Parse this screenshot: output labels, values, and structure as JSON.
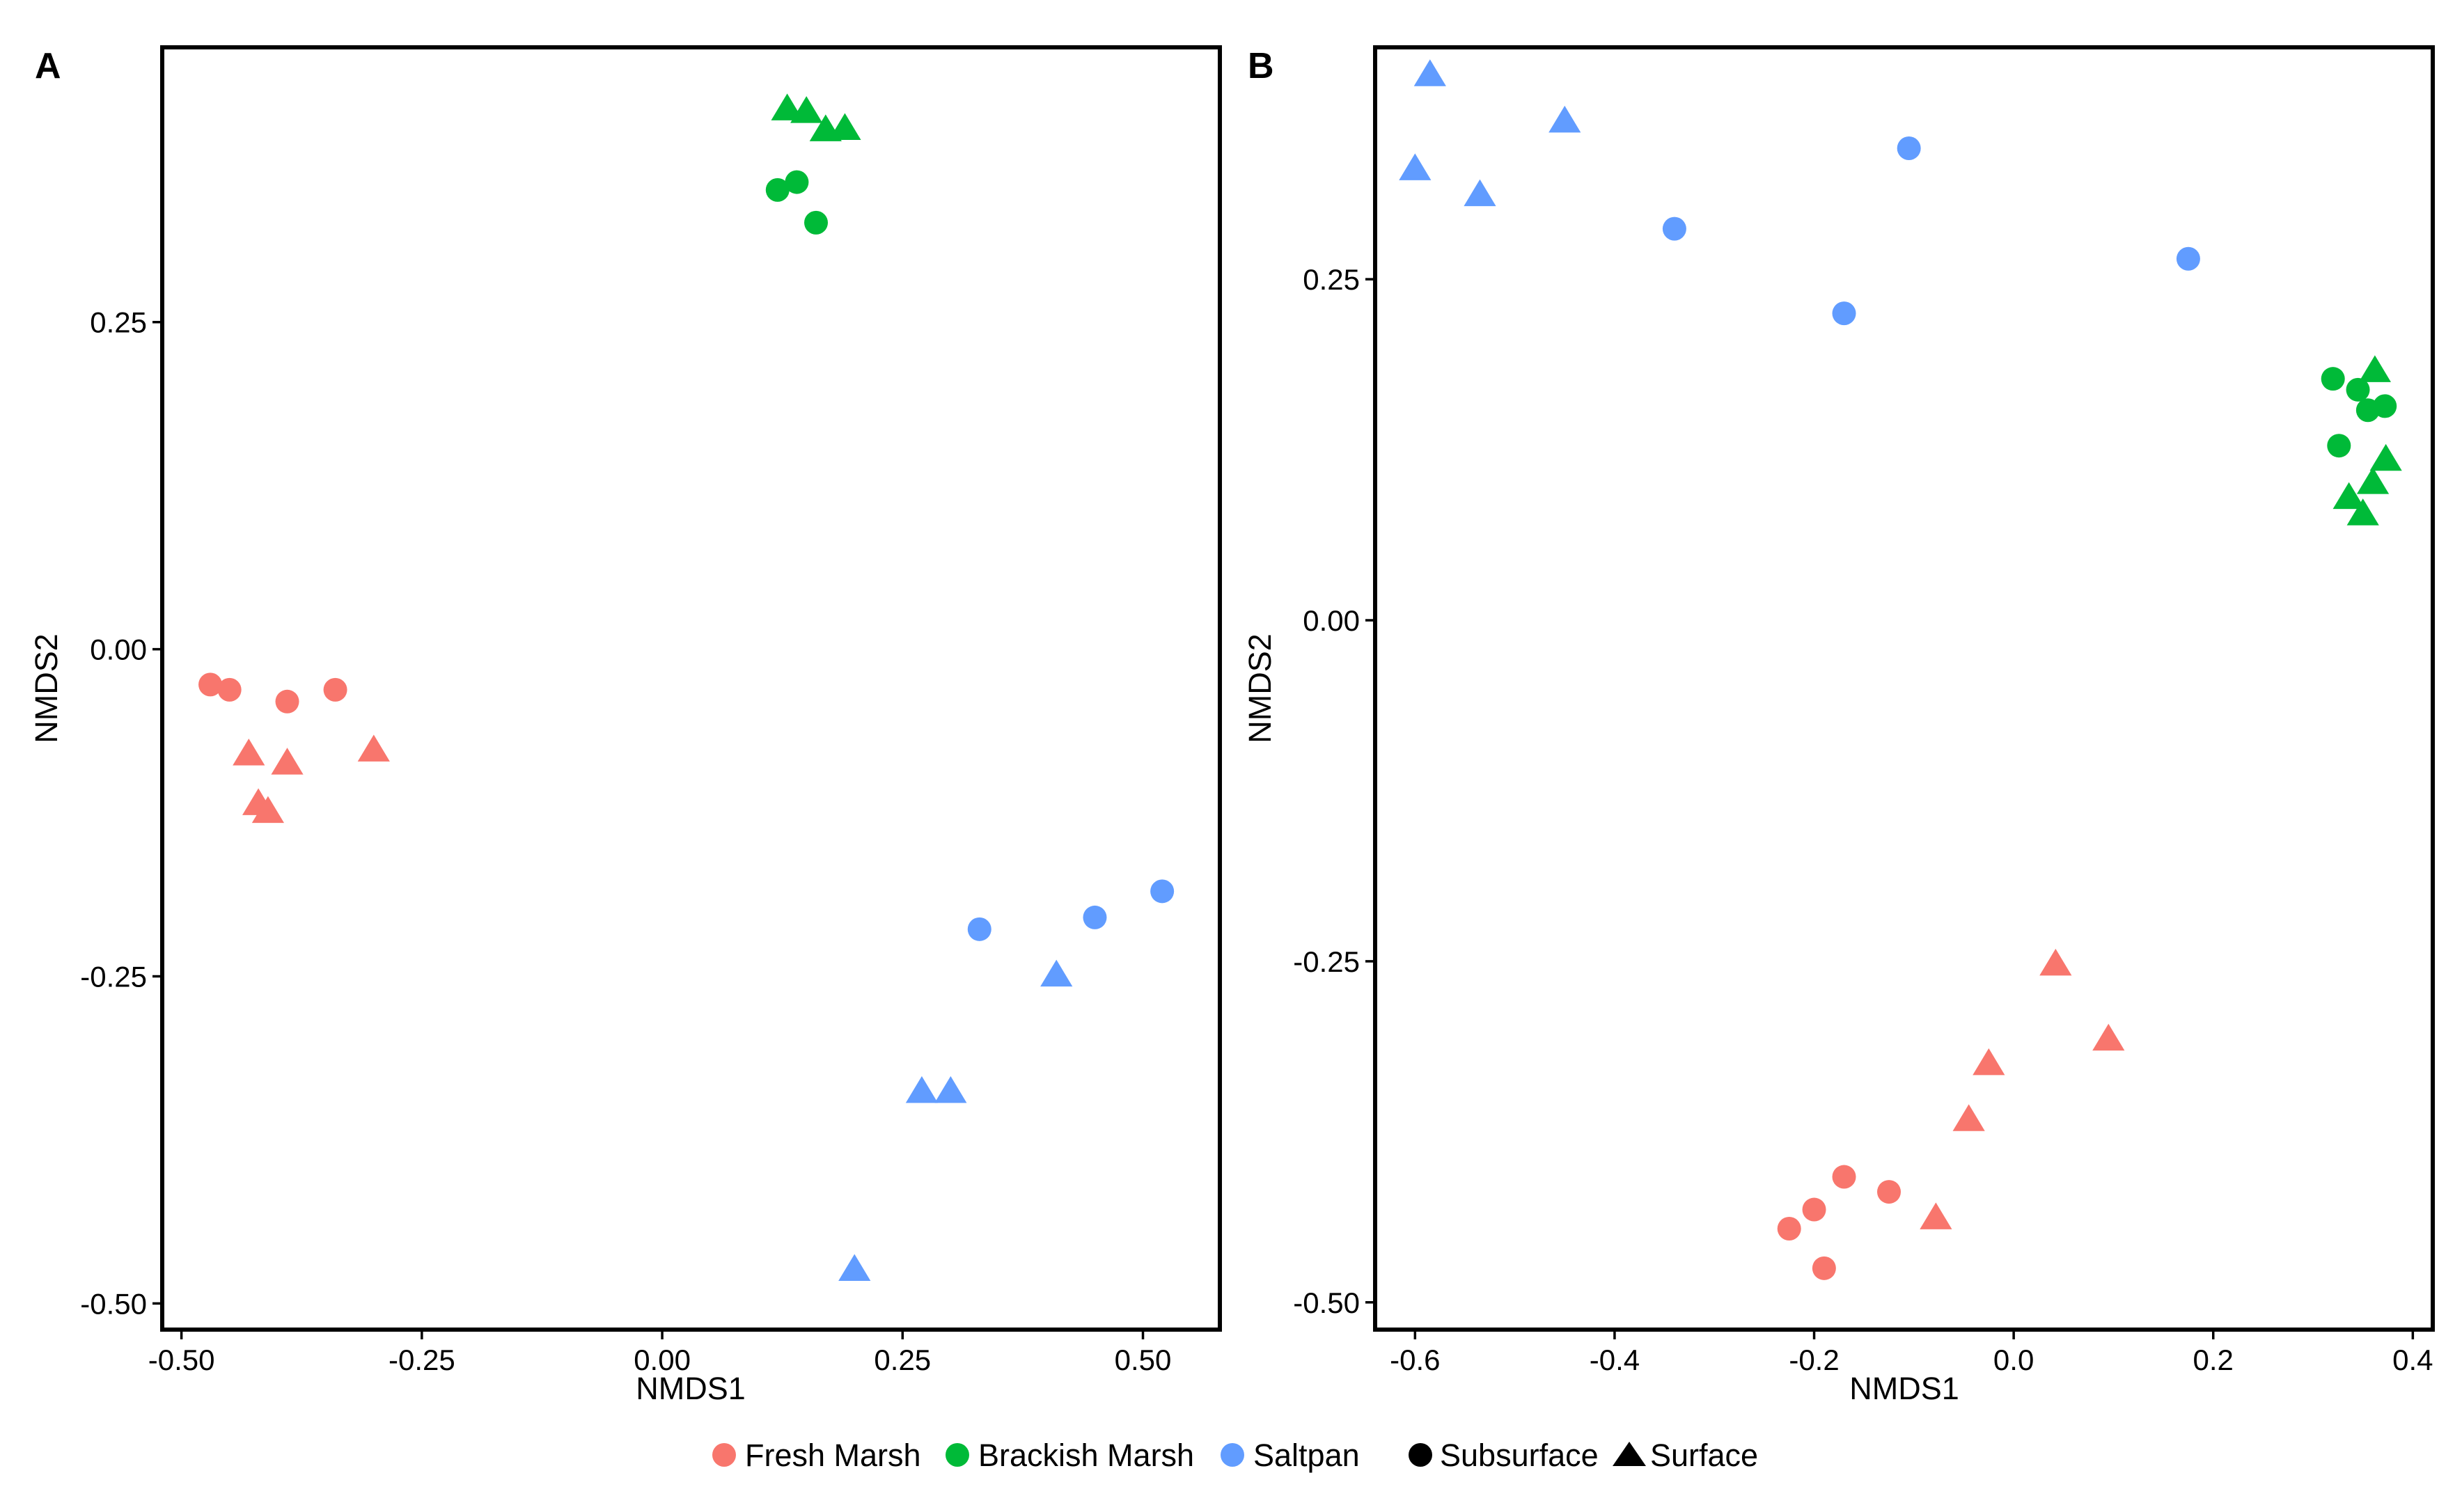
{
  "chart_data": [
    {
      "panel": "A",
      "type": "scatter",
      "xlabel": "NMDS1",
      "ylabel": "NMDS2",
      "xlim": [
        -0.52,
        0.58
      ],
      "ylim": [
        -0.52,
        0.46
      ],
      "xticks": [
        -0.5,
        -0.25,
        0.0,
        0.25,
        0.5
      ],
      "xtick_labels": [
        "-0.50",
        "-0.25",
        "0.00",
        "0.25",
        "0.50"
      ],
      "yticks": [
        -0.5,
        -0.25,
        0.0,
        0.25
      ],
      "ytick_labels": [
        "-0.50",
        "-0.25",
        "0.00",
        "0.25"
      ],
      "grid": false,
      "points": [
        {
          "x": -0.47,
          "y": -0.027,
          "group": "Fresh Marsh",
          "layer": "Subsurface"
        },
        {
          "x": -0.45,
          "y": -0.031,
          "group": "Fresh Marsh",
          "layer": "Subsurface"
        },
        {
          "x": -0.39,
          "y": -0.04,
          "group": "Fresh Marsh",
          "layer": "Subsurface"
        },
        {
          "x": -0.34,
          "y": -0.031,
          "group": "Fresh Marsh",
          "layer": "Subsurface"
        },
        {
          "x": -0.43,
          "y": -0.08,
          "group": "Fresh Marsh",
          "layer": "Surface"
        },
        {
          "x": -0.39,
          "y": -0.087,
          "group": "Fresh Marsh",
          "layer": "Surface"
        },
        {
          "x": -0.3,
          "y": -0.077,
          "group": "Fresh Marsh",
          "layer": "Surface"
        },
        {
          "x": -0.42,
          "y": -0.118,
          "group": "Fresh Marsh",
          "layer": "Surface"
        },
        {
          "x": -0.41,
          "y": -0.124,
          "group": "Fresh Marsh",
          "layer": "Surface"
        },
        {
          "x": 0.12,
          "y": 0.351,
          "group": "Brackish Marsh",
          "layer": "Subsurface"
        },
        {
          "x": 0.14,
          "y": 0.357,
          "group": "Brackish Marsh",
          "layer": "Subsurface"
        },
        {
          "x": 0.16,
          "y": 0.326,
          "group": "Brackish Marsh",
          "layer": "Subsurface"
        },
        {
          "x": 0.13,
          "y": 0.413,
          "group": "Brackish Marsh",
          "layer": "Surface"
        },
        {
          "x": 0.15,
          "y": 0.411,
          "group": "Brackish Marsh",
          "layer": "Surface"
        },
        {
          "x": 0.17,
          "y": 0.397,
          "group": "Brackish Marsh",
          "layer": "Surface"
        },
        {
          "x": 0.19,
          "y": 0.398,
          "group": "Brackish Marsh",
          "layer": "Surface"
        },
        {
          "x": 0.33,
          "y": -0.214,
          "group": "Saltpan",
          "layer": "Subsurface"
        },
        {
          "x": 0.45,
          "y": -0.205,
          "group": "Saltpan",
          "layer": "Subsurface"
        },
        {
          "x": 0.52,
          "y": -0.185,
          "group": "Saltpan",
          "layer": "Subsurface"
        },
        {
          "x": 0.41,
          "y": -0.249,
          "group": "Saltpan",
          "layer": "Surface"
        },
        {
          "x": 0.27,
          "y": -0.338,
          "group": "Saltpan",
          "layer": "Surface"
        },
        {
          "x": 0.3,
          "y": -0.338,
          "group": "Saltpan",
          "layer": "Surface"
        },
        {
          "x": 0.2,
          "y": -0.474,
          "group": "Saltpan",
          "layer": "Surface"
        }
      ]
    },
    {
      "panel": "B",
      "type": "scatter",
      "xlabel": "NMDS1",
      "ylabel": "NMDS2",
      "xlim": [
        -0.64,
        0.42
      ],
      "ylim": [
        -0.52,
        0.42
      ],
      "xticks": [
        -0.6,
        -0.4,
        -0.2,
        0.0,
        0.2,
        0.4
      ],
      "xtick_labels": [
        "-0.6",
        "-0.4",
        "-0.2",
        "0.0",
        "0.2",
        "0.4"
      ],
      "yticks": [
        -0.5,
        -0.25,
        0.0,
        0.25
      ],
      "ytick_labels": [
        "-0.50",
        "-0.25",
        "0.00",
        "0.25"
      ],
      "grid": false,
      "points": [
        {
          "x": -0.585,
          "y": 0.4,
          "group": "Saltpan",
          "layer": "Surface"
        },
        {
          "x": -0.45,
          "y": 0.366,
          "group": "Saltpan",
          "layer": "Surface"
        },
        {
          "x": -0.6,
          "y": 0.331,
          "group": "Saltpan",
          "layer": "Surface"
        },
        {
          "x": -0.535,
          "y": 0.312,
          "group": "Saltpan",
          "layer": "Surface"
        },
        {
          "x": -0.34,
          "y": 0.287,
          "group": "Saltpan",
          "layer": "Subsurface"
        },
        {
          "x": -0.105,
          "y": 0.346,
          "group": "Saltpan",
          "layer": "Subsurface"
        },
        {
          "x": -0.17,
          "y": 0.225,
          "group": "Saltpan",
          "layer": "Subsurface"
        },
        {
          "x": 0.175,
          "y": 0.265,
          "group": "Saltpan",
          "layer": "Subsurface"
        },
        {
          "x": 0.32,
          "y": 0.177,
          "group": "Brackish Marsh",
          "layer": "Subsurface"
        },
        {
          "x": 0.345,
          "y": 0.169,
          "group": "Brackish Marsh",
          "layer": "Subsurface"
        },
        {
          "x": 0.355,
          "y": 0.154,
          "group": "Brackish Marsh",
          "layer": "Subsurface"
        },
        {
          "x": 0.372,
          "y": 0.157,
          "group": "Brackish Marsh",
          "layer": "Subsurface"
        },
        {
          "x": 0.326,
          "y": 0.128,
          "group": "Brackish Marsh",
          "layer": "Subsurface"
        },
        {
          "x": 0.362,
          "y": 0.183,
          "group": "Brackish Marsh",
          "layer": "Surface"
        },
        {
          "x": 0.373,
          "y": 0.118,
          "group": "Brackish Marsh",
          "layer": "Surface"
        },
        {
          "x": 0.36,
          "y": 0.101,
          "group": "Brackish Marsh",
          "layer": "Surface"
        },
        {
          "x": 0.336,
          "y": 0.09,
          "group": "Brackish Marsh",
          "layer": "Surface"
        },
        {
          "x": 0.35,
          "y": 0.078,
          "group": "Brackish Marsh",
          "layer": "Surface"
        },
        {
          "x": 0.042,
          "y": -0.252,
          "group": "Fresh Marsh",
          "layer": "Surface"
        },
        {
          "x": 0.095,
          "y": -0.307,
          "group": "Fresh Marsh",
          "layer": "Surface"
        },
        {
          "x": -0.025,
          "y": -0.325,
          "group": "Fresh Marsh",
          "layer": "Surface"
        },
        {
          "x": -0.045,
          "y": -0.366,
          "group": "Fresh Marsh",
          "layer": "Surface"
        },
        {
          "x": -0.078,
          "y": -0.438,
          "group": "Fresh Marsh",
          "layer": "Surface"
        },
        {
          "x": -0.17,
          "y": -0.408,
          "group": "Fresh Marsh",
          "layer": "Subsurface"
        },
        {
          "x": -0.125,
          "y": -0.419,
          "group": "Fresh Marsh",
          "layer": "Subsurface"
        },
        {
          "x": -0.2,
          "y": -0.432,
          "group": "Fresh Marsh",
          "layer": "Subsurface"
        },
        {
          "x": -0.225,
          "y": -0.446,
          "group": "Fresh Marsh",
          "layer": "Subsurface"
        },
        {
          "x": -0.19,
          "y": -0.475,
          "group": "Fresh Marsh",
          "layer": "Subsurface"
        }
      ]
    }
  ],
  "colors": {
    "Fresh Marsh": "#f8766d",
    "Brackish Marsh": "#00ba38",
    "Saltpan": "#619cff",
    "shape_key": "#000000"
  },
  "legend": {
    "groups": [
      "Fresh Marsh",
      "Brackish Marsh",
      "Saltpan"
    ],
    "shapes": [
      {
        "label": "Subsurface",
        "shape": "circle"
      },
      {
        "label": "Surface",
        "shape": "triangle"
      }
    ],
    "placement": "bottom"
  }
}
